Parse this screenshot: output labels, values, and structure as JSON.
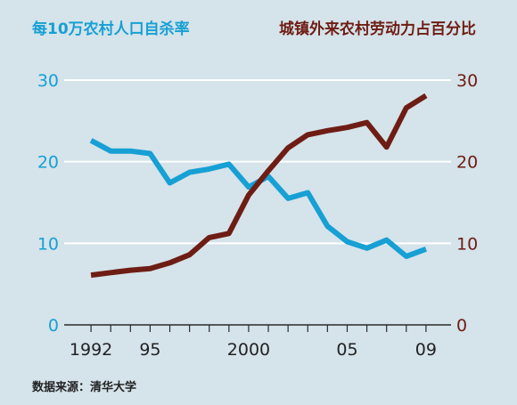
{
  "chart_data": {
    "type": "line",
    "left_title": "每10万农村人口自杀率",
    "right_title": "城镇外来农村劳动力占百分比",
    "source": "数据来源：清华大学",
    "x": [
      1992,
      1993,
      1994,
      1995,
      1996,
      1997,
      1998,
      1999,
      2000,
      2001,
      2002,
      2003,
      2004,
      2005,
      2006,
      2007,
      2008,
      2009
    ],
    "x_tick_values": [
      1992,
      1995,
      2000,
      2005,
      2009
    ],
    "x_tick_labels": [
      "1992",
      "95",
      "2000",
      "05",
      "09"
    ],
    "xlim": [
      1991,
      2010
    ],
    "y_tick_labels": [
      "0",
      "10",
      "20",
      "30"
    ],
    "ylim": [
      0,
      30
    ],
    "grid": true,
    "series": [
      {
        "axis": "left",
        "color": "#16a0d4",
        "values": [
          22.6,
          21.3,
          21.3,
          21.0,
          17.4,
          18.7,
          19.1,
          19.7,
          16.9,
          18.2,
          15.5,
          16.2,
          12.1,
          10.2,
          9.4,
          10.4,
          8.4,
          9.3
        ]
      },
      {
        "axis": "right",
        "color": "#6e1d14",
        "values": [
          6.1,
          6.4,
          6.7,
          6.9,
          7.6,
          8.6,
          10.7,
          11.2,
          15.9,
          18.9,
          21.7,
          23.3,
          23.8,
          24.2,
          24.8,
          21.8,
          26.6,
          28.1
        ]
      }
    ]
  }
}
